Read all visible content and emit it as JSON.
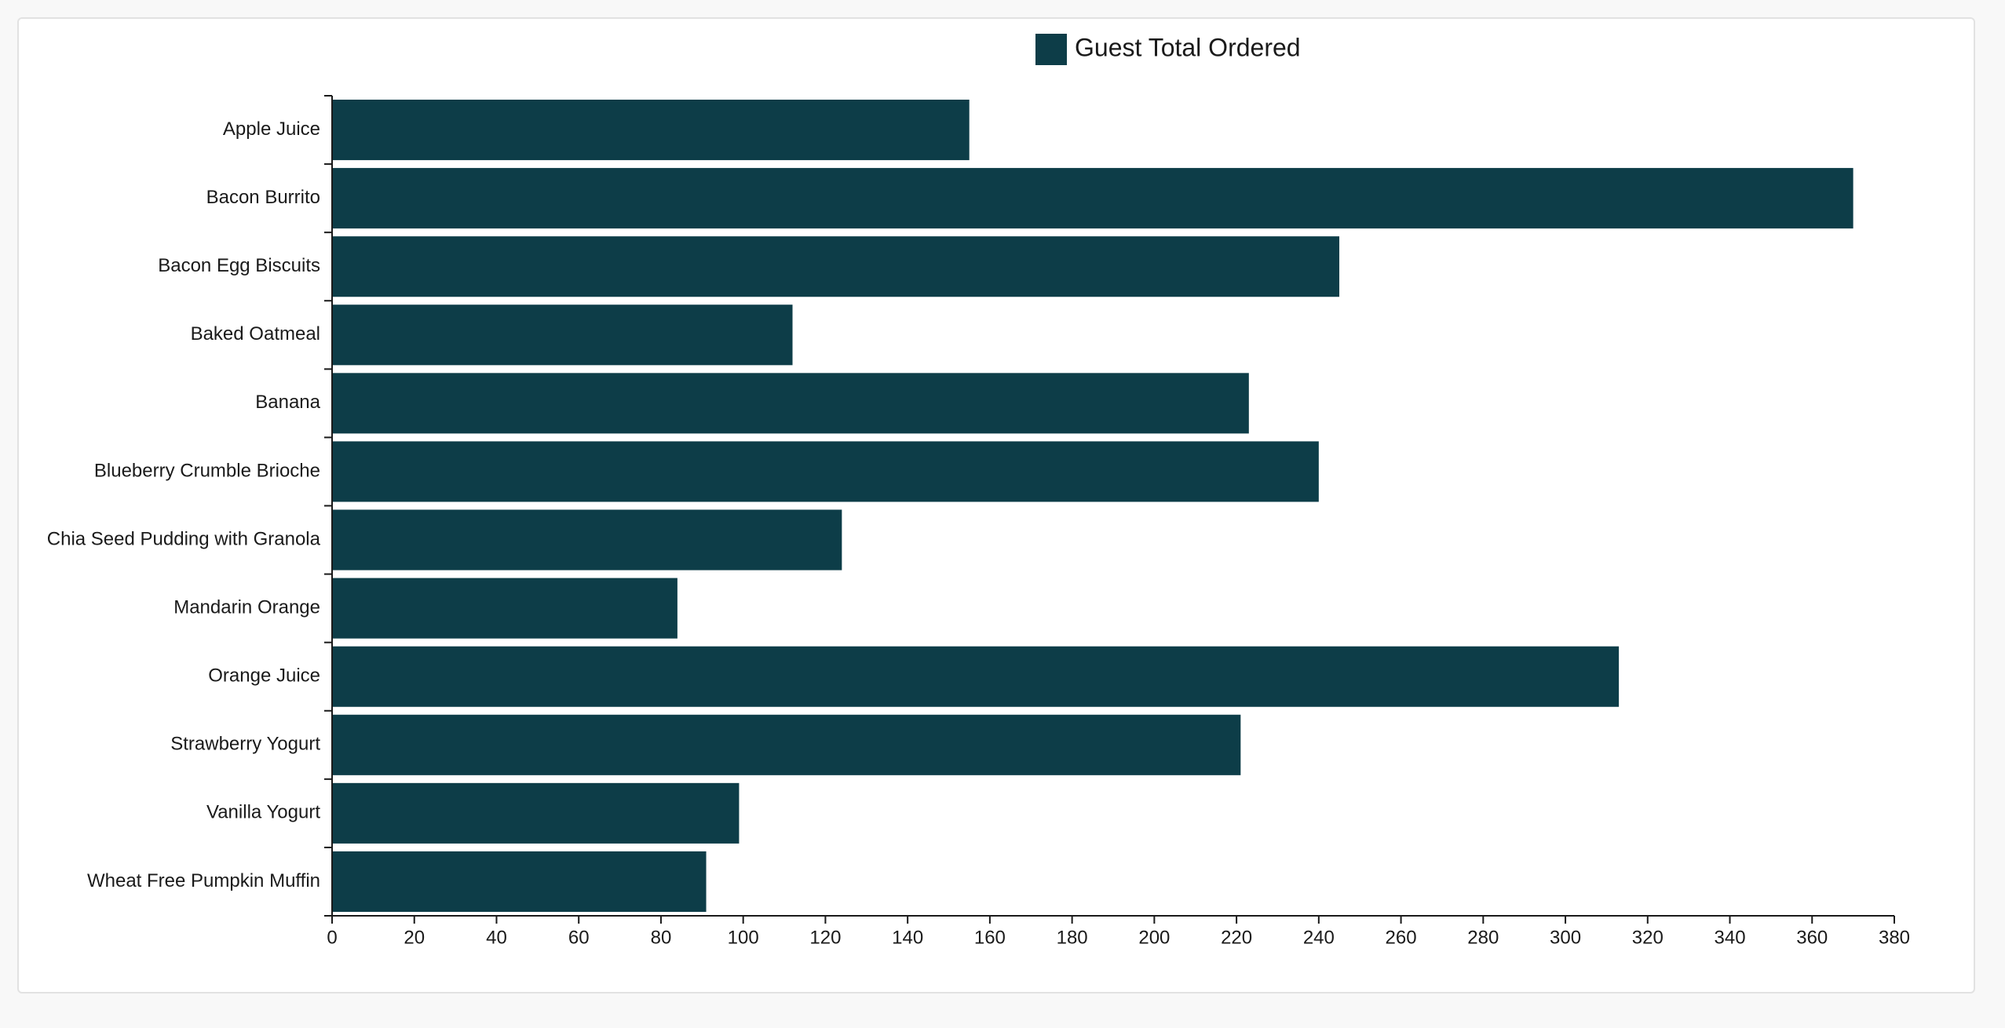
{
  "chart_data": {
    "type": "bar",
    "orientation": "horizontal",
    "categories": [
      "Apple Juice",
      "Bacon Burrito",
      "Bacon Egg Biscuits",
      "Baked Oatmeal",
      "Banana",
      "Blueberry Crumble Brioche",
      "Chia Seed Pudding with Granola",
      "Mandarin Orange",
      "Orange Juice",
      "Strawberry Yogurt",
      "Vanilla Yogurt",
      "Wheat Free Pumpkin Muffin"
    ],
    "series": [
      {
        "name": "Guest Total Ordered",
        "color": "#0d3d48",
        "values": [
          155,
          370,
          245,
          112,
          223,
          240,
          124,
          84,
          313,
          221,
          99,
          91
        ]
      }
    ],
    "xlim": [
      0,
      380
    ],
    "xticks": [
      0,
      20,
      40,
      60,
      80,
      100,
      120,
      140,
      160,
      180,
      200,
      220,
      240,
      260,
      280,
      300,
      320,
      340,
      360,
      380
    ],
    "grid": false,
    "legend_position": "top-center"
  }
}
